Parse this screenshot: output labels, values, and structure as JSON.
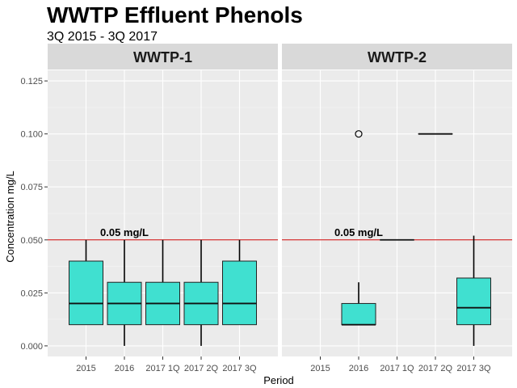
{
  "chart_data": {
    "type": "boxplot",
    "title": "WWTP Effluent Phenols",
    "subtitle": "3Q 2015 - 3Q 2017",
    "xlabel": "Period",
    "ylabel": "Concentration mg/L",
    "ylim": [
      -0.005,
      0.13
    ],
    "yticks": [
      "0.000",
      "0.025",
      "0.050",
      "0.075",
      "0.100",
      "0.125"
    ],
    "ytick_values": [
      0,
      0.025,
      0.05,
      0.075,
      0.1,
      0.125
    ],
    "categories": [
      "2015",
      "2016",
      "2017 1Q",
      "2017 2Q",
      "2017 3Q"
    ],
    "grid": true,
    "box_fill": "#40E0D0",
    "reference_line": {
      "value": 0.05,
      "label": "0.05 mg/L",
      "color": "#CC0000"
    },
    "panels": [
      {
        "name": "WWTP-1",
        "boxes": [
          {
            "category": "2015",
            "min": 0.01,
            "q1": 0.01,
            "median": 0.02,
            "q3": 0.04,
            "max": 0.05,
            "outliers": []
          },
          {
            "category": "2016",
            "min": 0.0,
            "q1": 0.01,
            "median": 0.02,
            "q3": 0.03,
            "max": 0.05,
            "outliers": []
          },
          {
            "category": "2017 1Q",
            "min": 0.01,
            "q1": 0.01,
            "median": 0.02,
            "q3": 0.03,
            "max": 0.05,
            "outliers": []
          },
          {
            "category": "2017 2Q",
            "min": 0.0,
            "q1": 0.01,
            "median": 0.02,
            "q3": 0.03,
            "max": 0.05,
            "outliers": []
          },
          {
            "category": "2017 3Q",
            "min": 0.01,
            "q1": 0.01,
            "median": 0.02,
            "q3": 0.04,
            "max": 0.05,
            "outliers": []
          }
        ]
      },
      {
        "name": "WWTP-2",
        "boxes": [
          {
            "category": "2016",
            "min": 0.01,
            "q1": 0.01,
            "median": 0.01,
            "q3": 0.02,
            "max": 0.03,
            "outliers": [
              0.1
            ]
          },
          {
            "category": "2017 1Q",
            "min": 0.05,
            "q1": 0.05,
            "median": 0.05,
            "q3": 0.05,
            "max": 0.05,
            "outliers": []
          },
          {
            "category": "2017 2Q",
            "min": 0.1,
            "q1": 0.1,
            "median": 0.1,
            "q3": 0.1,
            "max": 0.1,
            "outliers": []
          },
          {
            "category": "2017 3Q",
            "min": 0.0,
            "q1": 0.01,
            "median": 0.018,
            "q3": 0.032,
            "max": 0.052,
            "outliers": []
          }
        ]
      }
    ]
  }
}
